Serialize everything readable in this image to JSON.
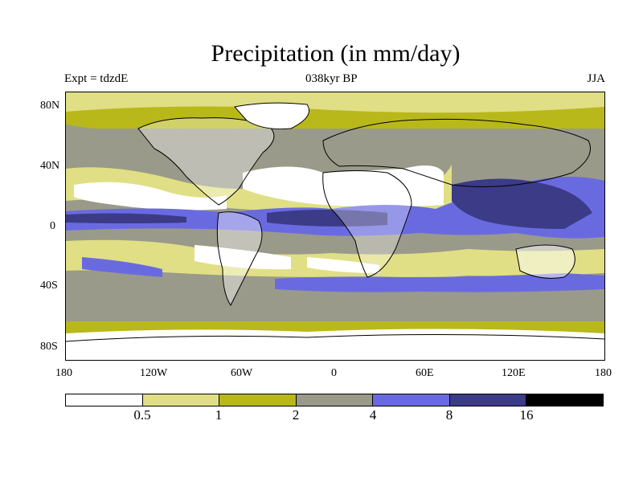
{
  "title": "Precipitation (in mm/day)",
  "subtitle_left": "Expt = tdzdE",
  "subtitle_center": "038kyr BP",
  "subtitle_right": "JJA",
  "lat_labels": [
    "80N",
    "40N",
    "0",
    "40S",
    "80S"
  ],
  "lon_labels": [
    "180",
    "120W",
    "60W",
    "0",
    "60E",
    "120E",
    "180"
  ],
  "colorbar": {
    "colors": [
      "#ffffff",
      "#e0df85",
      "#b9b81a",
      "#9a9a8a",
      "#6a6ae0",
      "#3b3b88",
      "#000000"
    ],
    "labels": [
      "0.5",
      "1",
      "2",
      "4",
      "8",
      "16"
    ]
  }
}
